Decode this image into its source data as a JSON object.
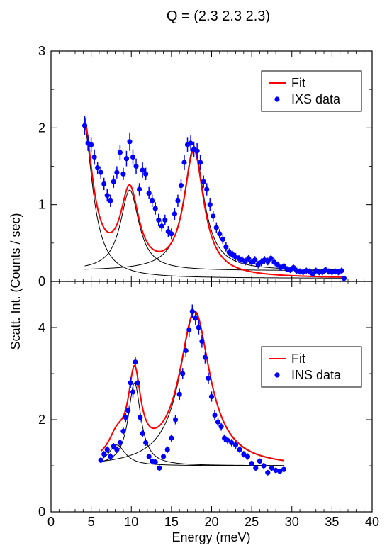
{
  "title": "Q = (2.3 2.3 2.3)",
  "xlabel": "Energy (meV)",
  "ylabel": "Scatt. Int. (Counts / sec)",
  "colors": {
    "fit": "#ff0000",
    "data": "#0000ff",
    "component": "#000000"
  },
  "chart_data": [
    {
      "type": "scatter",
      "panel": "top",
      "xlim": [
        0,
        40
      ],
      "ylim": [
        0,
        3
      ],
      "xticks": [
        0,
        5,
        10,
        15,
        20,
        25,
        30,
        35,
        40
      ],
      "yticks": [
        0,
        1,
        2,
        3
      ],
      "legend": {
        "placement": "top-right",
        "fit_label": "Fit",
        "data_label": "IXS data"
      },
      "fit_components": [
        {
          "kind": "lorentzian",
          "center": 4.0,
          "amplitude": 2.05,
          "hwhm": 1.4,
          "baseline": 0.0
        },
        {
          "kind": "lorentzian",
          "center": 9.8,
          "amplitude": 1.05,
          "hwhm": 1.4,
          "baseline": 0.1
        },
        {
          "kind": "lorentzian",
          "center": 17.8,
          "amplitude": 1.62,
          "hwhm": 1.5,
          "baseline": 0.1
        }
      ],
      "fit_background": 0.04,
      "series": [
        {
          "name": "IXS data",
          "points": [
            {
              "x": 4.2,
              "y": 2.03,
              "e": 0.12
            },
            {
              "x": 4.6,
              "y": 1.8,
              "e": 0.1
            },
            {
              "x": 5.0,
              "y": 1.78,
              "e": 0.1
            },
            {
              "x": 5.4,
              "y": 1.62,
              "e": 0.1
            },
            {
              "x": 5.8,
              "y": 1.48,
              "e": 0.08
            },
            {
              "x": 6.2,
              "y": 1.42,
              "e": 0.08
            },
            {
              "x": 6.6,
              "y": 1.27,
              "e": 0.08
            },
            {
              "x": 7.0,
              "y": 1.12,
              "e": 0.08
            },
            {
              "x": 7.4,
              "y": 1.05,
              "e": 0.08
            },
            {
              "x": 7.8,
              "y": 1.3,
              "e": 0.08
            },
            {
              "x": 8.2,
              "y": 1.42,
              "e": 0.08
            },
            {
              "x": 8.6,
              "y": 1.68,
              "e": 0.1
            },
            {
              "x": 9.0,
              "y": 1.4,
              "e": 0.08
            },
            {
              "x": 9.4,
              "y": 1.6,
              "e": 0.1
            },
            {
              "x": 9.8,
              "y": 1.82,
              "e": 0.12
            },
            {
              "x": 10.2,
              "y": 1.62,
              "e": 0.1
            },
            {
              "x": 10.6,
              "y": 1.5,
              "e": 0.1
            },
            {
              "x": 11.0,
              "y": 1.2,
              "e": 0.08
            },
            {
              "x": 11.4,
              "y": 1.45,
              "e": 0.1
            },
            {
              "x": 11.8,
              "y": 1.4,
              "e": 0.08
            },
            {
              "x": 12.2,
              "y": 1.15,
              "e": 0.08
            },
            {
              "x": 12.6,
              "y": 1.05,
              "e": 0.08
            },
            {
              "x": 13.0,
              "y": 0.95,
              "e": 0.08
            },
            {
              "x": 13.4,
              "y": 0.8,
              "e": 0.08
            },
            {
              "x": 13.8,
              "y": 0.72,
              "e": 0.07
            },
            {
              "x": 14.2,
              "y": 0.8,
              "e": 0.07
            },
            {
              "x": 14.6,
              "y": 0.65,
              "e": 0.07
            },
            {
              "x": 15.0,
              "y": 0.62,
              "e": 0.07
            },
            {
              "x": 15.4,
              "y": 0.88,
              "e": 0.08
            },
            {
              "x": 15.8,
              "y": 1.05,
              "e": 0.08
            },
            {
              "x": 16.2,
              "y": 1.25,
              "e": 0.08
            },
            {
              "x": 16.6,
              "y": 1.55,
              "e": 0.1
            },
            {
              "x": 17.0,
              "y": 1.78,
              "e": 0.1
            },
            {
              "x": 17.4,
              "y": 1.8,
              "e": 0.1
            },
            {
              "x": 17.8,
              "y": 1.72,
              "e": 0.1
            },
            {
              "x": 18.2,
              "y": 1.7,
              "e": 0.1
            },
            {
              "x": 18.6,
              "y": 1.55,
              "e": 0.1
            },
            {
              "x": 19.0,
              "y": 1.3,
              "e": 0.08
            },
            {
              "x": 19.4,
              "y": 1.2,
              "e": 0.08
            },
            {
              "x": 19.8,
              "y": 1.0,
              "e": 0.08
            },
            {
              "x": 20.2,
              "y": 0.85,
              "e": 0.07
            },
            {
              "x": 20.6,
              "y": 0.7,
              "e": 0.07
            },
            {
              "x": 21.0,
              "y": 0.62,
              "e": 0.06
            },
            {
              "x": 21.4,
              "y": 0.55,
              "e": 0.06
            },
            {
              "x": 21.8,
              "y": 0.45,
              "e": 0.06
            },
            {
              "x": 22.2,
              "y": 0.38,
              "e": 0.05
            },
            {
              "x": 22.6,
              "y": 0.35,
              "e": 0.05
            },
            {
              "x": 23.0,
              "y": 0.32,
              "e": 0.05
            },
            {
              "x": 23.4,
              "y": 0.3,
              "e": 0.05
            },
            {
              "x": 23.8,
              "y": 0.28,
              "e": 0.05
            },
            {
              "x": 24.2,
              "y": 0.26,
              "e": 0.05
            },
            {
              "x": 24.6,
              "y": 0.3,
              "e": 0.05
            },
            {
              "x": 25.0,
              "y": 0.25,
              "e": 0.05
            },
            {
              "x": 25.4,
              "y": 0.28,
              "e": 0.05
            },
            {
              "x": 25.8,
              "y": 0.22,
              "e": 0.05
            },
            {
              "x": 26.2,
              "y": 0.25,
              "e": 0.05
            },
            {
              "x": 26.6,
              "y": 0.28,
              "e": 0.05
            },
            {
              "x": 27.0,
              "y": 0.26,
              "e": 0.05
            },
            {
              "x": 27.4,
              "y": 0.3,
              "e": 0.05
            },
            {
              "x": 27.8,
              "y": 0.25,
              "e": 0.05
            },
            {
              "x": 28.2,
              "y": 0.22,
              "e": 0.04
            },
            {
              "x": 28.6,
              "y": 0.18,
              "e": 0.04
            },
            {
              "x": 29.0,
              "y": 0.2,
              "e": 0.04
            },
            {
              "x": 29.4,
              "y": 0.16,
              "e": 0.04
            },
            {
              "x": 29.8,
              "y": 0.15,
              "e": 0.04
            },
            {
              "x": 30.2,
              "y": 0.18,
              "e": 0.04
            },
            {
              "x": 30.6,
              "y": 0.14,
              "e": 0.04
            },
            {
              "x": 31.0,
              "y": 0.13,
              "e": 0.04
            },
            {
              "x": 31.4,
              "y": 0.12,
              "e": 0.04
            },
            {
              "x": 31.8,
              "y": 0.14,
              "e": 0.04
            },
            {
              "x": 32.2,
              "y": 0.13,
              "e": 0.04
            },
            {
              "x": 32.6,
              "y": 0.1,
              "e": 0.04
            },
            {
              "x": 33.0,
              "y": 0.14,
              "e": 0.04
            },
            {
              "x": 33.4,
              "y": 0.12,
              "e": 0.04
            },
            {
              "x": 33.8,
              "y": 0.12,
              "e": 0.04
            },
            {
              "x": 34.2,
              "y": 0.15,
              "e": 0.04
            },
            {
              "x": 34.6,
              "y": 0.13,
              "e": 0.04
            },
            {
              "x": 35.0,
              "y": 0.12,
              "e": 0.04
            },
            {
              "x": 35.4,
              "y": 0.13,
              "e": 0.04
            },
            {
              "x": 35.8,
              "y": 0.12,
              "e": 0.04
            },
            {
              "x": 36.2,
              "y": 0.14,
              "e": 0.04
            },
            {
              "x": 36.5,
              "y": 0.04,
              "e": 0.02
            }
          ]
        }
      ]
    },
    {
      "type": "scatter",
      "panel": "bottom",
      "xlim": [
        0,
        40
      ],
      "ylim": [
        0,
        5
      ],
      "xticks": [
        0,
        5,
        10,
        15,
        20,
        25,
        30,
        35,
        40
      ],
      "yticks": [
        0,
        2,
        4
      ],
      "legend": {
        "placement": "right",
        "fit_label": "Fit",
        "data_label": "INS data"
      },
      "fit_components": [
        {
          "kind": "lorentzian",
          "center": 8.2,
          "amplitude": 0.45,
          "hwhm": 1.3,
          "baseline": 1.0
        },
        {
          "kind": "lorentzian",
          "center": 10.4,
          "amplitude": 1.8,
          "hwhm": 0.95,
          "baseline": 1.0
        },
        {
          "kind": "lorentzian",
          "center": 17.9,
          "amplitude": 3.35,
          "hwhm": 2.3,
          "baseline": 0.97
        }
      ],
      "fit_background": 0.0,
      "series": [
        {
          "name": "INS data",
          "points": [
            {
              "x": 6.2,
              "y": 1.12,
              "e": 0.06
            },
            {
              "x": 6.6,
              "y": 1.25,
              "e": 0.07
            },
            {
              "x": 7.0,
              "y": 1.35,
              "e": 0.07
            },
            {
              "x": 7.4,
              "y": 1.2,
              "e": 0.07
            },
            {
              "x": 7.8,
              "y": 1.42,
              "e": 0.07
            },
            {
              "x": 8.2,
              "y": 1.35,
              "e": 0.07
            },
            {
              "x": 8.6,
              "y": 1.5,
              "e": 0.07
            },
            {
              "x": 9.0,
              "y": 1.75,
              "e": 0.08
            },
            {
              "x": 9.3,
              "y": 2.05,
              "e": 0.1
            },
            {
              "x": 9.6,
              "y": 2.2,
              "e": 0.1
            },
            {
              "x": 9.9,
              "y": 2.8,
              "e": 0.12
            },
            {
              "x": 10.2,
              "y": 2.6,
              "e": 0.12
            },
            {
              "x": 10.5,
              "y": 3.25,
              "e": 0.12
            },
            {
              "x": 10.8,
              "y": 2.8,
              "e": 0.12
            },
            {
              "x": 11.1,
              "y": 2.05,
              "e": 0.1
            },
            {
              "x": 11.4,
              "y": 1.7,
              "e": 0.08
            },
            {
              "x": 11.8,
              "y": 1.5,
              "e": 0.07
            },
            {
              "x": 12.2,
              "y": 1.2,
              "e": 0.06
            },
            {
              "x": 12.6,
              "y": 1.1,
              "e": 0.06
            },
            {
              "x": 13.0,
              "y": 1.08,
              "e": 0.06
            },
            {
              "x": 13.5,
              "y": 0.95,
              "e": 0.06
            },
            {
              "x": 14.0,
              "y": 1.2,
              "e": 0.06
            },
            {
              "x": 14.5,
              "y": 1.35,
              "e": 0.07
            },
            {
              "x": 15.0,
              "y": 1.6,
              "e": 0.08
            },
            {
              "x": 15.5,
              "y": 2.0,
              "e": 0.1
            },
            {
              "x": 16.0,
              "y": 2.55,
              "e": 0.12
            },
            {
              "x": 16.4,
              "y": 3.0,
              "e": 0.12
            },
            {
              "x": 16.8,
              "y": 3.5,
              "e": 0.14
            },
            {
              "x": 17.2,
              "y": 3.95,
              "e": 0.15
            },
            {
              "x": 17.6,
              "y": 4.35,
              "e": 0.15
            },
            {
              "x": 18.0,
              "y": 4.2,
              "e": 0.15
            },
            {
              "x": 18.4,
              "y": 4.0,
              "e": 0.15
            },
            {
              "x": 18.8,
              "y": 3.7,
              "e": 0.14
            },
            {
              "x": 19.2,
              "y": 3.35,
              "e": 0.13
            },
            {
              "x": 19.6,
              "y": 2.9,
              "e": 0.12
            },
            {
              "x": 20.0,
              "y": 2.5,
              "e": 0.11
            },
            {
              "x": 20.4,
              "y": 2.1,
              "e": 0.1
            },
            {
              "x": 20.8,
              "y": 1.95,
              "e": 0.09
            },
            {
              "x": 21.2,
              "y": 1.85,
              "e": 0.09
            },
            {
              "x": 21.6,
              "y": 1.6,
              "e": 0.08
            },
            {
              "x": 22.0,
              "y": 1.55,
              "e": 0.08
            },
            {
              "x": 22.5,
              "y": 1.5,
              "e": 0.08
            },
            {
              "x": 23.0,
              "y": 1.45,
              "e": 0.08
            },
            {
              "x": 23.5,
              "y": 1.35,
              "e": 0.07
            },
            {
              "x": 24.0,
              "y": 1.25,
              "e": 0.07
            },
            {
              "x": 24.5,
              "y": 1.2,
              "e": 0.07
            },
            {
              "x": 25.0,
              "y": 1.05,
              "e": 0.06
            },
            {
              "x": 25.5,
              "y": 0.95,
              "e": 0.06
            },
            {
              "x": 26.0,
              "y": 1.1,
              "e": 0.06
            },
            {
              "x": 26.5,
              "y": 1.0,
              "e": 0.06
            },
            {
              "x": 27.0,
              "y": 0.85,
              "e": 0.06
            },
            {
              "x": 27.5,
              "y": 0.95,
              "e": 0.06
            },
            {
              "x": 28.0,
              "y": 0.9,
              "e": 0.06
            },
            {
              "x": 28.5,
              "y": 0.88,
              "e": 0.06
            },
            {
              "x": 29.0,
              "y": 0.92,
              "e": 0.06
            }
          ]
        }
      ]
    }
  ]
}
